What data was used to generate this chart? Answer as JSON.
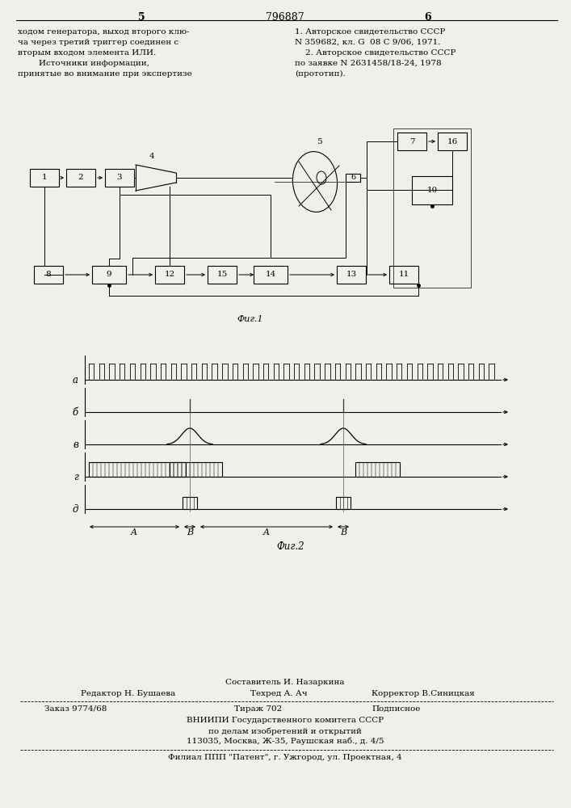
{
  "page_color": "#f0f0eb",
  "page_num_left": "5",
  "page_num_center": "796887",
  "page_num_right": "6",
  "left_text_lines": [
    "ходом генератора, выход второго клю-",
    "ча через третий триггер соединен с",
    "вторым входом элемента ИЛИ.",
    "        Источники информации,",
    "принятые во внимание при экспертизе"
  ],
  "right_text_lines": [
    "1. Авторское свидетельство СССР",
    "N 359682, кл. G  08 C 9/06, 1971.",
    "    2. Авторское свидетельство СССР",
    "по заявке N 2631458/18-24, 1978",
    "(прототип)."
  ],
  "fig1_caption": "Фиг.1",
  "fig2_caption": "Фиг.2",
  "footer_line1": "Составитель И. Назаркина",
  "footer_line2_left": "Редактор Н. Бушаева",
  "footer_line2_mid": "Техред А. Ач",
  "footer_line2_right": "Корректор В.Синицкая",
  "footer_line3_left": "Заказ 9774/68",
  "footer_line3_mid": "Тираж 702",
  "footer_line3_right": "Подписное",
  "footer_line4": "ВНИИПИ Государственного комитета СССР",
  "footer_line5": "по делам изобретений и открытий",
  "footer_line6": "113035, Москва, Ж-35, Раушская наб., д. 4/5",
  "footer_line7": "Филиал ППП \"Патент\", г. Ужгород, ул. Проектная, 4"
}
